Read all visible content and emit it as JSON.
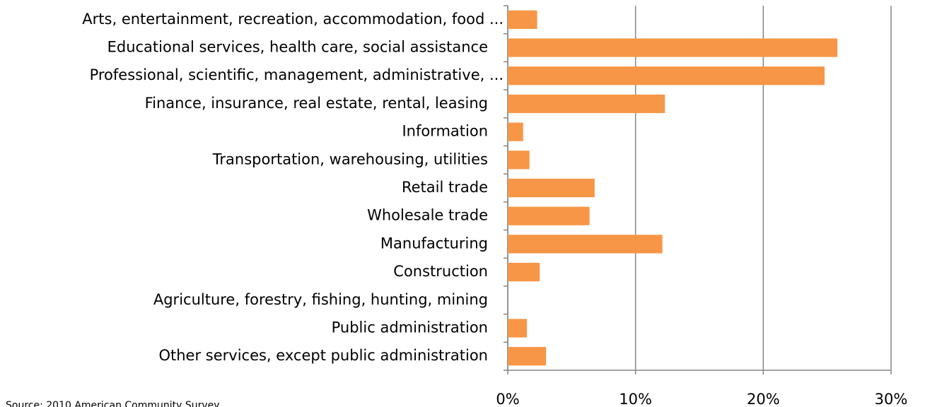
{
  "chart_data": {
    "type": "hbar",
    "categories": [
      "Arts, entertainment, recreation, accommodation, food ...",
      "Educational services, health care, social assistance",
      "Professional, scientific, management, administrative, ...",
      "Finance, insurance, real estate, rental, leasing",
      "Information",
      "Transportation, warehousing, utilities",
      "Retail trade",
      "Wholesale trade",
      "Manufacturing",
      "Construction",
      "Agriculture, forestry, fishing, hunting, mining",
      "Public administration",
      "Other services, except public administration"
    ],
    "values": [
      2.3,
      25.8,
      24.8,
      12.3,
      1.2,
      1.7,
      6.8,
      6.4,
      12.1,
      2.5,
      0,
      1.5,
      3.0
    ],
    "color": "#f79646",
    "xlim": [
      0,
      30
    ],
    "xticks": [
      {
        "value": 0,
        "label": "0%"
      },
      {
        "value": 10,
        "label": "10%"
      },
      {
        "value": 20,
        "label": "20%"
      },
      {
        "value": 30,
        "label": "30%"
      }
    ],
    "grid": true,
    "source": "Source: 2010 American Community Survey"
  }
}
